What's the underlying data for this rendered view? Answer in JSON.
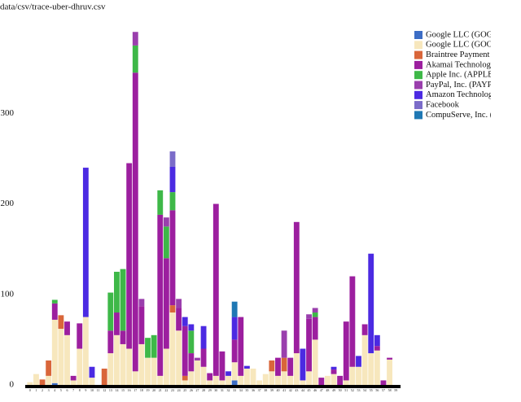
{
  "chart_data": {
    "type": "stacked_bar",
    "title": "data/csv/trace-uber-dhruv.csv",
    "categories": [
      "0",
      "1",
      "2",
      "3",
      "4",
      "5",
      "6",
      "7",
      "8",
      "9",
      "10",
      "11",
      "12",
      "13",
      "14",
      "15",
      "16",
      "17",
      "18",
      "19",
      "20",
      "21",
      "22",
      "23",
      "24",
      "25",
      "26",
      "27",
      "28",
      "29",
      "30",
      "31",
      "32",
      "33",
      "34",
      "35",
      "36",
      "37",
      "38",
      "39",
      "40",
      "41",
      "42",
      "43",
      "44",
      "45",
      "46",
      "47",
      "48",
      "49",
      "50",
      "51",
      "52",
      "53",
      "54",
      "55",
      "56",
      "57",
      "58",
      "59"
    ],
    "ylim": [
      0,
      392
    ],
    "yticks": [
      0,
      100,
      200,
      300
    ],
    "series": [
      {
        "name": "Google LLC (GOG",
        "color": "#3c6dc5",
        "values": [
          0,
          0,
          0,
          0,
          2,
          0,
          0,
          0,
          0,
          0,
          0,
          0,
          0,
          0,
          0,
          0,
          0,
          0,
          0,
          0,
          0,
          0,
          0,
          0,
          0,
          0,
          0,
          0,
          0,
          0,
          0,
          0,
          0,
          5,
          0,
          0,
          0,
          0,
          0,
          0,
          0,
          0,
          0,
          0,
          0,
          0,
          0,
          0,
          0,
          0,
          0,
          0,
          0,
          0,
          0,
          0,
          0,
          0,
          0,
          0
        ]
      },
      {
        "name": "Google LLC (GOO",
        "color": "#f7e7bd",
        "values": [
          3,
          12,
          0,
          10,
          70,
          62,
          55,
          5,
          40,
          75,
          8,
          0,
          0,
          35,
          55,
          45,
          40,
          15,
          45,
          30,
          30,
          10,
          40,
          80,
          60,
          5,
          15,
          27,
          20,
          5,
          10,
          5,
          10,
          20,
          10,
          18,
          18,
          5,
          12,
          15,
          10,
          15,
          10,
          35,
          5,
          15,
          50,
          0,
          10,
          12,
          0,
          5,
          20,
          20,
          55,
          35,
          38,
          0,
          28,
          0
        ]
      },
      {
        "name": "Braintree Payment :",
        "color": "#d9663a",
        "values": [
          0,
          0,
          6,
          17,
          0,
          15,
          0,
          0,
          0,
          0,
          0,
          0,
          18,
          0,
          0,
          0,
          0,
          0,
          0,
          0,
          0,
          0,
          0,
          8,
          0,
          5,
          0,
          0,
          0,
          0,
          0,
          0,
          0,
          0,
          0,
          0,
          0,
          0,
          0,
          12,
          0,
          15,
          0,
          0,
          0,
          0,
          0,
          0,
          0,
          0,
          0,
          0,
          0,
          0,
          0,
          0,
          0,
          0,
          0,
          0
        ]
      },
      {
        "name": "Akamai Technologi",
        "color": "#9c1f9f",
        "values": [
          0,
          0,
          0,
          0,
          18,
          0,
          15,
          5,
          28,
          0,
          0,
          0,
          0,
          25,
          25,
          15,
          205,
          330,
          42,
          0,
          0,
          178,
          100,
          105,
          25,
          55,
          20,
          0,
          20,
          8,
          190,
          32,
          0,
          25,
          65,
          0,
          0,
          0,
          0,
          0,
          20,
          0,
          20,
          145,
          0,
          58,
          25,
          8,
          0,
          5,
          10,
          65,
          100,
          0,
          12,
          0,
          5,
          5,
          2,
          0
        ]
      },
      {
        "name": "Apple Inc. (APPLE",
        "color": "#3eb848",
        "values": [
          0,
          0,
          0,
          0,
          4,
          0,
          0,
          0,
          0,
          0,
          0,
          0,
          0,
          42,
          45,
          68,
          0,
          30,
          0,
          22,
          25,
          27,
          35,
          20,
          0,
          0,
          25,
          0,
          0,
          0,
          0,
          0,
          0,
          0,
          0,
          0,
          0,
          0,
          0,
          0,
          0,
          0,
          0,
          0,
          0,
          0,
          5,
          0,
          0,
          0,
          0,
          0,
          0,
          0,
          0,
          0,
          0,
          0,
          0,
          0
        ]
      },
      {
        "name": "PayPal, Inc. (PAYP.",
        "color": "#9a3fad",
        "values": [
          0,
          0,
          0,
          0,
          0,
          0,
          0,
          0,
          0,
          0,
          0,
          0,
          0,
          0,
          0,
          0,
          0,
          15,
          8,
          0,
          0,
          0,
          10,
          0,
          10,
          0,
          0,
          3,
          0,
          0,
          0,
          0,
          0,
          0,
          0,
          0,
          0,
          0,
          0,
          0,
          0,
          30,
          0,
          0,
          0,
          5,
          5,
          0,
          0,
          0,
          0,
          0,
          0,
          0,
          0,
          0,
          0,
          0,
          0,
          0
        ]
      },
      {
        "name": "Amazon Technolog",
        "color": "#4b2ae2",
        "values": [
          0,
          0,
          0,
          0,
          0,
          0,
          0,
          0,
          0,
          165,
          12,
          0,
          0,
          0,
          0,
          0,
          0,
          0,
          0,
          0,
          0,
          0,
          0,
          28,
          0,
          10,
          7,
          0,
          25,
          0,
          0,
          0,
          5,
          25,
          0,
          3,
          0,
          0,
          0,
          0,
          0,
          0,
          0,
          0,
          35,
          0,
          0,
          0,
          0,
          3,
          0,
          0,
          0,
          12,
          0,
          110,
          12,
          0,
          0,
          0
        ]
      },
      {
        "name": "Facebook",
        "color": "#7b6cc9",
        "values": [
          0,
          0,
          0,
          0,
          0,
          0,
          0,
          0,
          0,
          0,
          0,
          0,
          0,
          0,
          0,
          0,
          0,
          0,
          0,
          0,
          0,
          0,
          0,
          17,
          0,
          0,
          0,
          0,
          0,
          0,
          0,
          0,
          0,
          0,
          0,
          0,
          0,
          0,
          0,
          0,
          0,
          0,
          0,
          0,
          0,
          0,
          0,
          0,
          0,
          0,
          0,
          0,
          0,
          0,
          0,
          0,
          0,
          0,
          0,
          0
        ]
      },
      {
        "name": "CompuServe, Inc. (",
        "color": "#1f78b4",
        "values": [
          0,
          0,
          0,
          0,
          0,
          0,
          0,
          0,
          0,
          0,
          0,
          0,
          0,
          0,
          0,
          0,
          0,
          0,
          0,
          0,
          0,
          0,
          0,
          0,
          0,
          0,
          0,
          0,
          0,
          0,
          0,
          0,
          0,
          17,
          0,
          0,
          0,
          0,
          0,
          0,
          0,
          0,
          0,
          0,
          0,
          0,
          0,
          0,
          0,
          0,
          0,
          0,
          0,
          0,
          0,
          0,
          0,
          0,
          0,
          0
        ]
      }
    ]
  }
}
